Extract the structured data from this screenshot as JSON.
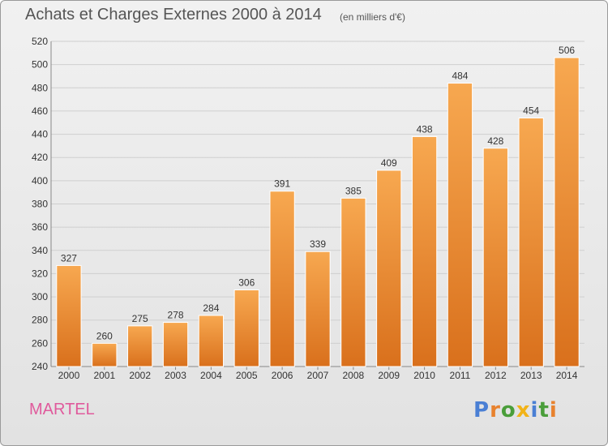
{
  "chart_data": {
    "type": "bar",
    "title": "Achats et Charges Externes 2000 à 2014",
    "subtitle": "(en milliers d'€)",
    "categories": [
      "2000",
      "2001",
      "2002",
      "2003",
      "2004",
      "2005",
      "2006",
      "2007",
      "2008",
      "2009",
      "2010",
      "2011",
      "2012",
      "2013",
      "2014"
    ],
    "values": [
      327,
      260,
      275,
      278,
      284,
      306,
      391,
      339,
      385,
      409,
      438,
      484,
      428,
      454,
      506
    ],
    "ylim": [
      240,
      520
    ],
    "yticks": [
      240,
      260,
      280,
      300,
      320,
      340,
      360,
      380,
      400,
      420,
      440,
      460,
      480,
      500,
      520
    ],
    "grid": true,
    "bar_color": "#e8822e"
  },
  "commune": "MARTEL",
  "brand": {
    "letters": [
      "P",
      "r",
      "o",
      "x",
      "i",
      "t",
      "i"
    ],
    "colors": [
      "#4a7fd4",
      "#e8822e",
      "#4a9e3a",
      "#f2b318",
      "#4a7fd4",
      "#4a9e3a",
      "#e8822e"
    ]
  }
}
